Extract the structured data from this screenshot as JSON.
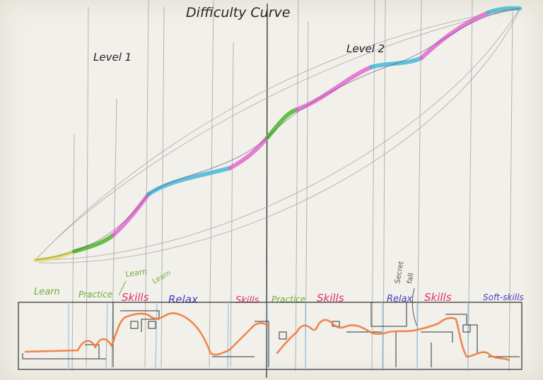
{
  "title": "Difficulty Curve",
  "level_labels": [
    "Level 1",
    "Level 2"
  ],
  "section_labels": [
    {
      "text": "Learn",
      "color": "#6fae3c"
    },
    {
      "text": "Practice",
      "color": "#6fae3c"
    },
    {
      "text": "Skills",
      "color": "#e0306a"
    },
    {
      "text": "Relax",
      "color": "#4a3cbf"
    },
    {
      "text": "Skills",
      "color": "#e0306a"
    },
    {
      "text": "Practice",
      "color": "#6fae3c"
    },
    {
      "text": "Skills",
      "color": "#e0306a"
    },
    {
      "text": "Relax",
      "color": "#4a3cbf"
    },
    {
      "text": "Skills",
      "color": "#e0306a"
    },
    {
      "text": "Soft-skills",
      "color": "#4a3cbf"
    }
  ],
  "annotations": {
    "learn_a": "Learn",
    "learn_b": "Learn",
    "secret": "Secret",
    "fall": "fall"
  },
  "colors": {
    "pencil": "#8f8f8f",
    "ink": "#222222",
    "learn": "#e6e06a",
    "practice": "#55b83a",
    "skills": "#e06ad0",
    "relax": "#44b8d8",
    "path": "#f07a3a",
    "divider_blue": "#8ec6e6"
  }
}
